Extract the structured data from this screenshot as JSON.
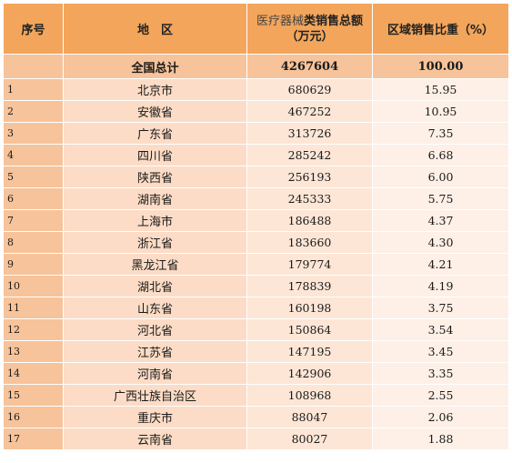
{
  "header": {
    "col_index": "序号",
    "col_region": "地　区",
    "col_sales_light": "医疗器械",
    "col_sales_bold": "类销售总额",
    "col_sales_unit": "（万元）",
    "col_share": "区域销售比重（%）"
  },
  "total": {
    "label": "全国总计",
    "sales": "4267604",
    "share": "100.00"
  },
  "rows": [
    {
      "index": "1",
      "region": "北京市",
      "sales": "680629",
      "share": "15.95"
    },
    {
      "index": "2",
      "region": "安徽省",
      "sales": "467252",
      "share": "10.95"
    },
    {
      "index": "3",
      "region": "广东省",
      "sales": "313726",
      "share": "7.35"
    },
    {
      "index": "4",
      "region": "四川省",
      "sales": "285242",
      "share": "6.68"
    },
    {
      "index": "5",
      "region": "陕西省",
      "sales": "256193",
      "share": "6.00"
    },
    {
      "index": "6",
      "region": "湖南省",
      "sales": "245333",
      "share": "5.75"
    },
    {
      "index": "7",
      "region": "上海市",
      "sales": "186488",
      "share": "4.37"
    },
    {
      "index": "8",
      "region": "浙江省",
      "sales": "183660",
      "share": "4.30"
    },
    {
      "index": "9",
      "region": "黑龙江省",
      "sales": "179774",
      "share": "4.21"
    },
    {
      "index": "10",
      "region": "湖北省",
      "sales": "178839",
      "share": "4.19"
    },
    {
      "index": "11",
      "region": "山东省",
      "sales": "160198",
      "share": "3.75"
    },
    {
      "index": "12",
      "region": "河北省",
      "sales": "150864",
      "share": "3.54"
    },
    {
      "index": "13",
      "region": "江苏省",
      "sales": "147195",
      "share": "3.45"
    },
    {
      "index": "14",
      "region": "河南省",
      "sales": "142906",
      "share": "3.35"
    },
    {
      "index": "15",
      "region": "广西壮族自治区",
      "sales": "108968",
      "share": "2.55"
    },
    {
      "index": "16",
      "region": "重庆市",
      "sales": "88047",
      "share": "2.06"
    },
    {
      "index": "17",
      "region": "云南省",
      "sales": "80027",
      "share": "1.88"
    }
  ]
}
